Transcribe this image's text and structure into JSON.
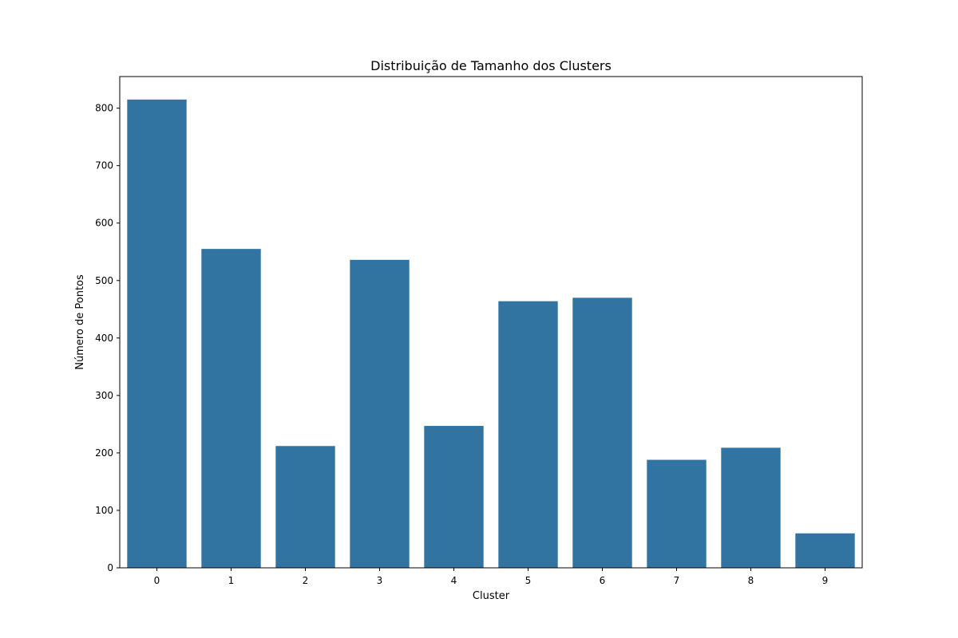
{
  "chart_data": {
    "type": "bar",
    "title": "Distribuição de Tamanho dos Clusters",
    "xlabel": "Cluster",
    "ylabel": "Número de Pontos",
    "categories": [
      "0",
      "1",
      "2",
      "3",
      "4",
      "5",
      "6",
      "7",
      "8",
      "9"
    ],
    "values": [
      815,
      555,
      212,
      536,
      247,
      464,
      470,
      188,
      209,
      60
    ],
    "ylim": [
      0,
      855
    ],
    "yticks": [
      "0",
      "100",
      "200",
      "300",
      "400",
      "500",
      "600",
      "700",
      "800"
    ],
    "grid": false,
    "bar_color": "#3274a1",
    "legend": "none"
  }
}
